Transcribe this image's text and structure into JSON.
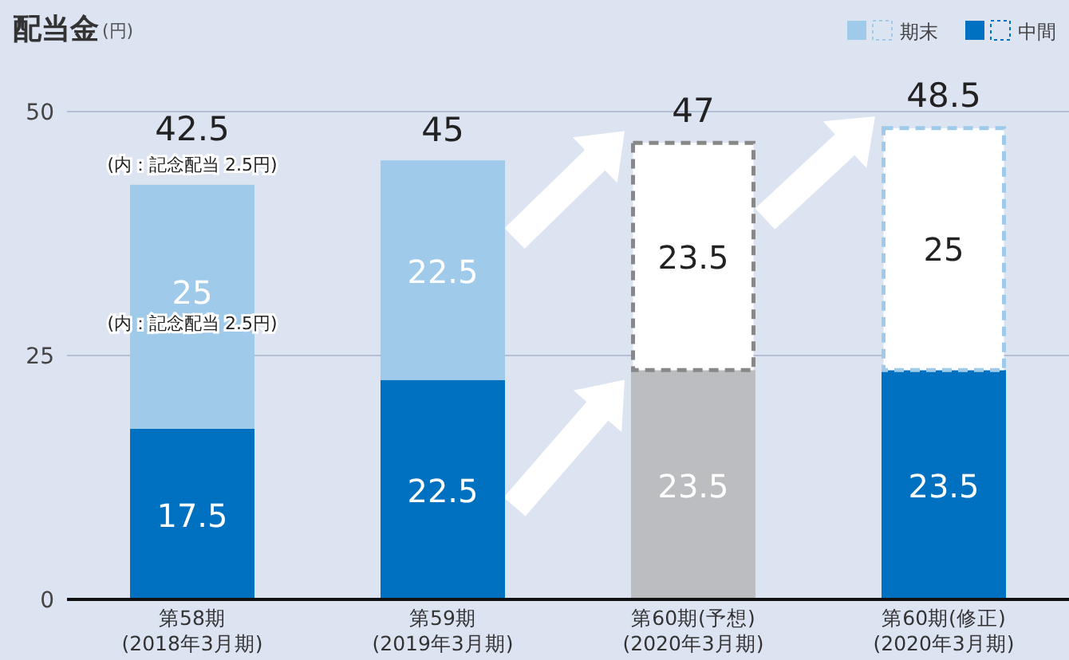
{
  "chart_data": {
    "type": "bar",
    "stacked": true,
    "title": "配当金",
    "ylabel": "(円)",
    "categories": [
      "第58期\n(2018年3月期)",
      "第59期\n(2019年3月期)",
      "第60期(予想)\n(2020年3月期)",
      "第60期(修正)\n(2020年3月期)"
    ],
    "series": [
      {
        "name": "中間",
        "color": "#0070c0",
        "colors": [
          "#0070c0",
          "#0070c0",
          "#bcbdc0",
          "#0070c0"
        ],
        "values": [
          17.5,
          22.5,
          23.5,
          23.5
        ]
      },
      {
        "name": "期末",
        "color": "#9fcaea",
        "colors": [
          "#9fcaea",
          "#9fcaea",
          "#ffffff",
          "#ffffff"
        ],
        "values": [
          25,
          22.5,
          23.5,
          25
        ]
      }
    ],
    "totals": [
      "42.5",
      "45",
      "47",
      "48.5"
    ],
    "data_labels": true,
    "annotations": [
      "(内：記念配当 2.5円)",
      "(内：記念配当 2.5円)"
    ],
    "ylim": [
      0,
      50
    ],
    "yticks": [
      0,
      25,
      50
    ],
    "grid": "y",
    "legend": "top right"
  }
}
